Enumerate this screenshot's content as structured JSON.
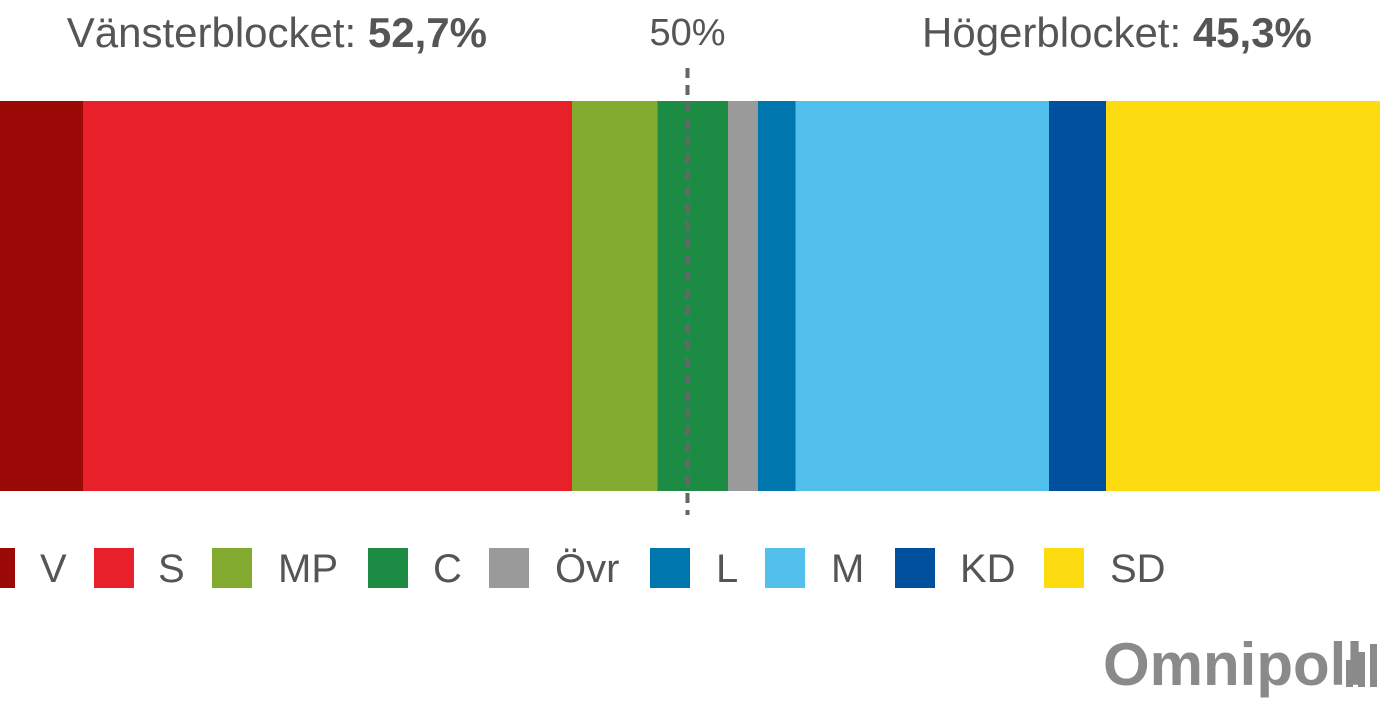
{
  "chart_data": {
    "type": "stacked-bar",
    "blocks": [
      {
        "label": "Vänsterblocket:",
        "value": 52.7,
        "value_label": "52,7%"
      },
      {
        "label": "Högerblocket:",
        "value": 45.3,
        "value_label": "45,3%"
      }
    ],
    "reference_line": {
      "value": 50,
      "label": "50%"
    },
    "xlim": [
      0,
      100
    ],
    "series": [
      {
        "name": "V",
        "color": "#9b0a06",
        "values": [
          9.7
        ]
      },
      {
        "name": "S",
        "color": "#e8202a",
        "values": [
          32.6
        ]
      },
      {
        "name": "MP",
        "color": "#83ab30",
        "values": [
          5.7
        ]
      },
      {
        "name": "C",
        "color": "#1c8c44",
        "values": [
          4.7
        ]
      },
      {
        "name": "Övr",
        "color": "#9a9a9a",
        "values": [
          2.0
        ]
      },
      {
        "name": "L",
        "color": "#0076ae",
        "values": [
          2.5
        ]
      },
      {
        "name": "M",
        "color": "#51c0ec",
        "values": [
          16.9
        ]
      },
      {
        "name": "KD",
        "color": "#00509e",
        "values": [
          3.8
        ]
      },
      {
        "name": "SD",
        "color": "#fcdb10",
        "values": [
          22.1
        ]
      }
    ],
    "source_logo": "Omnipoll"
  }
}
